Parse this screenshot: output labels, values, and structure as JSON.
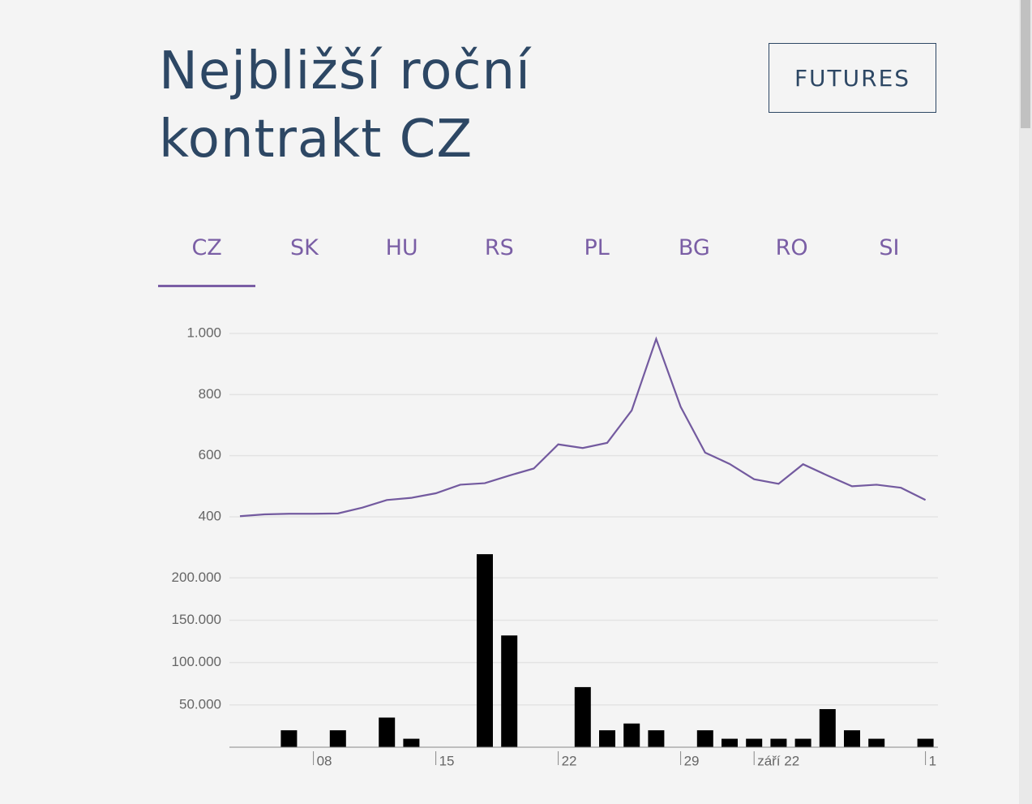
{
  "header": {
    "title": "Nejbližší roční kontrakt CZ",
    "button": "FUTURES"
  },
  "tabs": {
    "items": [
      "CZ",
      "SK",
      "HU",
      "RS",
      "PL",
      "BG",
      "RO",
      "SI"
    ],
    "active": 0
  },
  "chart_data": [
    {
      "type": "line",
      "color": "#735a9f",
      "grid": true,
      "categories": [
        null,
        null,
        null,
        "08",
        null,
        null,
        null,
        null,
        "15",
        null,
        null,
        null,
        null,
        "22",
        null,
        null,
        null,
        null,
        "29",
        null,
        null,
        "září 22",
        null,
        null,
        null,
        null,
        null,
        null,
        "1"
      ],
      "values": [
        402,
        408,
        410,
        410,
        411,
        430,
        455,
        462,
        477,
        505,
        510,
        535,
        558,
        637,
        625,
        642,
        748,
        982,
        760,
        610,
        573,
        523,
        508,
        572,
        535,
        500,
        505,
        495,
        455
      ],
      "ylim": [
        400,
        1000
      ],
      "yticks": [
        400,
        600,
        800,
        {
          "value": 1000,
          "label": "1.000"
        }
      ]
    },
    {
      "type": "bar",
      "color": "#000000",
      "grid": true,
      "categories": [
        null,
        null,
        null,
        "08",
        null,
        null,
        null,
        null,
        "15",
        null,
        null,
        null,
        null,
        "22",
        null,
        null,
        null,
        null,
        "29",
        null,
        null,
        "září 22",
        null,
        null,
        null,
        null,
        null,
        null,
        "1"
      ],
      "values": [
        0,
        0,
        20000,
        0,
        20000,
        0,
        35000,
        10000,
        0,
        0,
        228000,
        132000,
        0,
        0,
        71000,
        20000,
        28000,
        20000,
        0,
        20000,
        10000,
        10000,
        10000,
        10000,
        45000,
        20000,
        10000,
        0,
        10000
      ],
      "ylim": [
        0,
        230000
      ],
      "yticks": [
        {
          "value": 50000,
          "label": "50.000"
        },
        {
          "value": 100000,
          "label": "100.000"
        },
        {
          "value": 150000,
          "label": "150.000"
        },
        {
          "value": 200000,
          "label": "200.000"
        }
      ]
    }
  ]
}
